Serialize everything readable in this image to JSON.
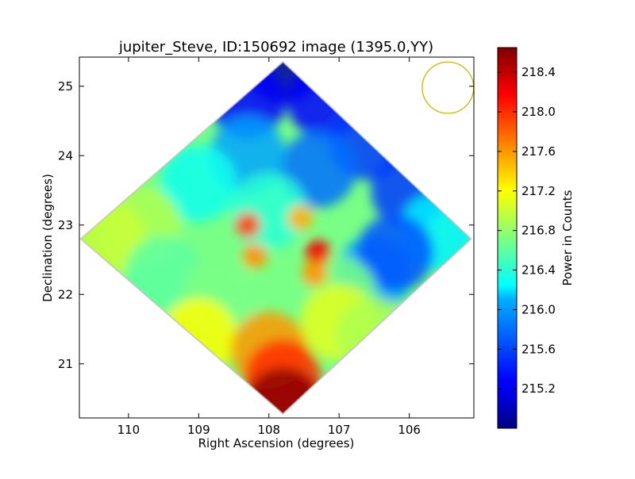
{
  "chart_data": {
    "type": "heatmap",
    "title": "jupiter_Steve, ID:150692 image (1395.0,YY)",
    "xlabel": "Right Ascension (degrees)",
    "ylabel": "Declination (degrees)",
    "xlim": [
      110.7,
      105.08
    ],
    "ylim": [
      20.22,
      25.42
    ],
    "x_reversed": true,
    "x_ticks": [
      110,
      109,
      108,
      107,
      106
    ],
    "y_ticks": [
      21,
      22,
      23,
      24,
      25
    ],
    "colorbar": {
      "label": "Power in Counts",
      "range": [
        214.8,
        218.65
      ],
      "ticks": [
        215.2,
        215.6,
        216.0,
        216.4,
        216.8,
        217.2,
        217.6,
        218.0,
        218.4
      ],
      "tick_labels": [
        "215.2",
        "215.6",
        "216.0",
        "216.4",
        "216.8",
        "217.2",
        "217.6",
        "218.0",
        "218.4"
      ],
      "colormap": "jet"
    },
    "footprint": {
      "shape": "diamond",
      "vertices": [
        [
          107.8,
          25.35
        ],
        [
          105.12,
          22.8
        ],
        [
          107.8,
          20.28
        ],
        [
          110.68,
          22.8
        ]
      ]
    },
    "field_samples": [
      {
        "ra": 107.8,
        "dec": 25.3,
        "value": 214.9
      },
      {
        "ra": 108.3,
        "dec": 24.8,
        "value": 215.3
      },
      {
        "ra": 107.2,
        "dec": 24.8,
        "value": 215.3
      },
      {
        "ra": 106.6,
        "dec": 24.2,
        "value": 215.5
      },
      {
        "ra": 107.3,
        "dec": 23.8,
        "value": 215.7
      },
      {
        "ra": 108.3,
        "dec": 24.0,
        "value": 215.9
      },
      {
        "ra": 106.0,
        "dec": 23.5,
        "value": 215.5
      },
      {
        "ra": 105.6,
        "dec": 22.9,
        "value": 216.2
      },
      {
        "ra": 106.5,
        "dec": 22.3,
        "value": 215.9
      },
      {
        "ra": 106.2,
        "dec": 22.6,
        "value": 215.6
      },
      {
        "ra": 109.0,
        "dec": 23.6,
        "value": 216.3
      },
      {
        "ra": 108.0,
        "dec": 23.2,
        "value": 216.4
      },
      {
        "ra": 109.8,
        "dec": 23.0,
        "value": 216.9
      },
      {
        "ra": 110.3,
        "dec": 22.8,
        "value": 217.0
      },
      {
        "ra": 109.5,
        "dec": 22.3,
        "value": 216.6
      },
      {
        "ra": 108.7,
        "dec": 22.0,
        "value": 216.7
      },
      {
        "ra": 107.0,
        "dec": 22.0,
        "value": 216.7
      },
      {
        "ra": 107.0,
        "dec": 21.6,
        "value": 217.1
      },
      {
        "ra": 109.0,
        "dec": 21.4,
        "value": 217.2
      },
      {
        "ra": 106.5,
        "dec": 21.4,
        "value": 216.9
      },
      {
        "ra": 108.0,
        "dec": 21.2,
        "value": 217.6
      },
      {
        "ra": 107.8,
        "dec": 20.8,
        "value": 218.0
      },
      {
        "ra": 107.8,
        "dec": 20.4,
        "value": 218.6
      },
      {
        "ra": 108.3,
        "dec": 23.0,
        "value": 217.9
      },
      {
        "ra": 107.3,
        "dec": 22.6,
        "value": 218.2
      },
      {
        "ra": 108.2,
        "dec": 22.55,
        "value": 217.6
      },
      {
        "ra": 107.35,
        "dec": 22.3,
        "value": 217.6
      },
      {
        "ra": 107.55,
        "dec": 23.1,
        "value": 217.5
      }
    ],
    "annotations": [
      {
        "type": "beam-circle",
        "ra": 105.45,
        "dec": 24.98,
        "radius_deg": 0.37,
        "color": "#bcbc00"
      }
    ],
    "grid": false
  }
}
